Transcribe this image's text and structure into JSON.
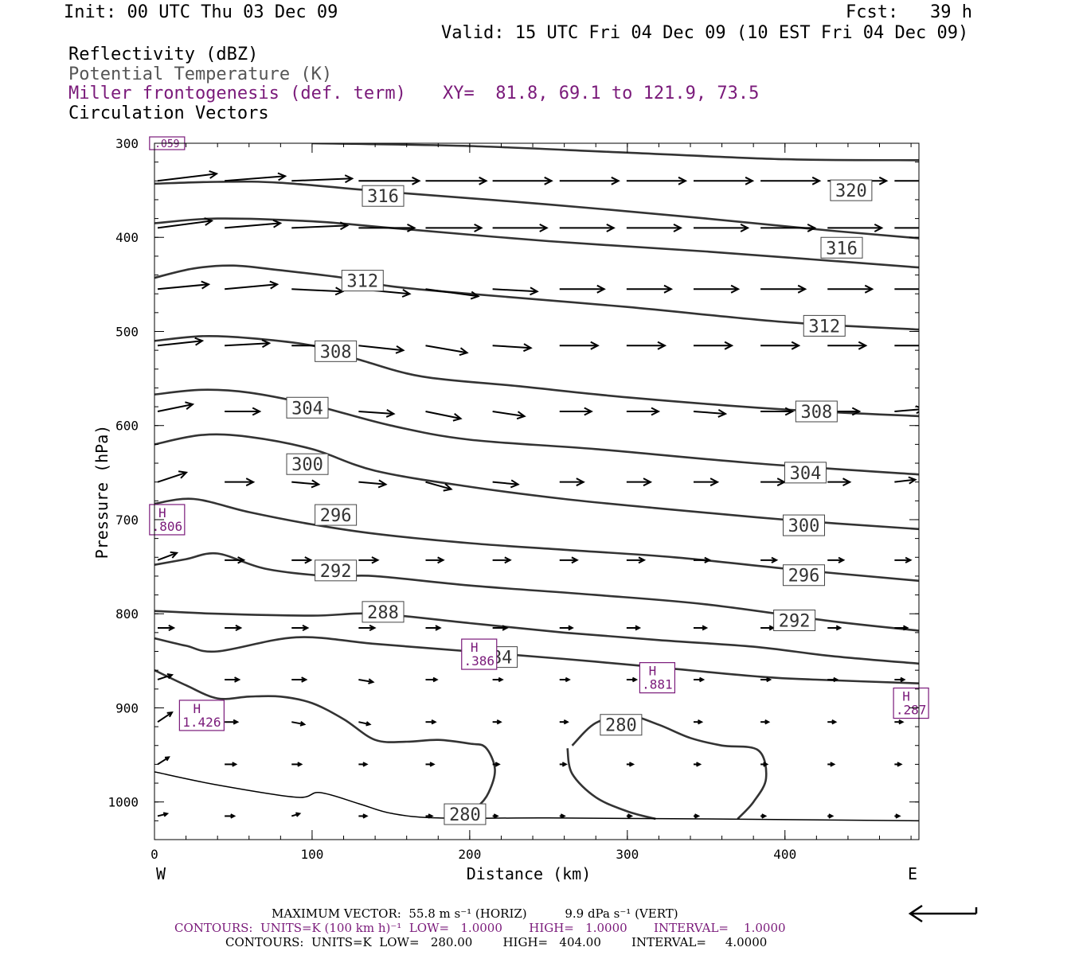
{
  "header": {
    "init": "Init: 00 UTC Thu 03 Dec 09",
    "fcst": "Fcst:   39 h",
    "valid": "Valid: 15 UTC Fri 04 Dec 09 (10 EST Fri 04 Dec 09)",
    "field1": "Reflectivity (dBZ)",
    "field2": "Potential Temperature (K)",
    "field3": "Miller frontogenesis (def. term)",
    "xy": "XY=  81.8, 69.1 to 121.9, 73.5",
    "field4": "Circulation Vectors"
  },
  "chart_data": {
    "type": "line",
    "xlabel": "Distance (km)",
    "ylabel": "Pressure (hPa)",
    "xlim": [
      0,
      485
    ],
    "ylim": [
      1040,
      300
    ],
    "x_ticks": [
      0,
      100,
      200,
      300,
      400
    ],
    "y_ticks": [
      300,
      400,
      500,
      600,
      700,
      800,
      900,
      1000
    ],
    "x_end_labels": {
      "left": "W",
      "right": "E"
    },
    "theta_series": [
      {
        "name": "312",
        "color": "#333",
        "points": [
          [
            0,
            443
          ],
          [
            25,
            433
          ],
          [
            50,
            430
          ],
          [
            80,
            435
          ],
          [
            120,
            443
          ],
          [
            150,
            452
          ],
          [
            200,
            460
          ],
          [
            300,
            474
          ],
          [
            400,
            490
          ],
          [
            485,
            498
          ]
        ]
      },
      {
        "name": "308",
        "color": "#333",
        "points": [
          [
            0,
            510
          ],
          [
            30,
            505
          ],
          [
            60,
            507
          ],
          [
            100,
            515
          ],
          [
            130,
            530
          ],
          [
            170,
            548
          ],
          [
            230,
            558
          ],
          [
            300,
            570
          ],
          [
            400,
            583
          ],
          [
            485,
            590
          ]
        ]
      },
      {
        "name": "304",
        "color": "#333",
        "points": [
          [
            0,
            567
          ],
          [
            30,
            562
          ],
          [
            60,
            565
          ],
          [
            100,
            578
          ],
          [
            150,
            600
          ],
          [
            200,
            615
          ],
          [
            280,
            625
          ],
          [
            380,
            640
          ],
          [
            485,
            652
          ]
        ]
      },
      {
        "name": "300",
        "color": "#333",
        "points": [
          [
            0,
            620
          ],
          [
            30,
            610
          ],
          [
            60,
            612
          ],
          [
            100,
            625
          ],
          [
            140,
            648
          ],
          [
            200,
            665
          ],
          [
            260,
            678
          ],
          [
            320,
            688
          ],
          [
            400,
            700
          ],
          [
            485,
            710
          ]
        ]
      },
      {
        "name": "296",
        "color": "#333",
        "points": [
          [
            0,
            683
          ],
          [
            25,
            678
          ],
          [
            60,
            692
          ],
          [
            100,
            705
          ],
          [
            140,
            715
          ],
          [
            200,
            725
          ],
          [
            260,
            732
          ],
          [
            330,
            740
          ],
          [
            400,
            752
          ],
          [
            485,
            765
          ]
        ]
      },
      {
        "name": "292",
        "color": "#333",
        "points": [
          [
            0,
            748
          ],
          [
            20,
            742
          ],
          [
            40,
            736
          ],
          [
            70,
            752
          ],
          [
            110,
            760
          ],
          [
            140,
            760
          ],
          [
            200,
            770
          ],
          [
            280,
            780
          ],
          [
            350,
            790
          ],
          [
            430,
            808
          ],
          [
            485,
            818
          ]
        ]
      },
      {
        "name": "288",
        "color": "#333",
        "points": [
          [
            0,
            797
          ],
          [
            40,
            800
          ],
          [
            100,
            802
          ],
          [
            140,
            800
          ],
          [
            200,
            810
          ],
          [
            260,
            820
          ],
          [
            320,
            828
          ],
          [
            380,
            835
          ],
          [
            430,
            845
          ],
          [
            485,
            853
          ]
        ]
      },
      {
        "name": "284",
        "color": "#333",
        "points": [
          [
            0,
            826
          ],
          [
            20,
            834
          ],
          [
            40,
            840
          ],
          [
            90,
            825
          ],
          [
            140,
            832
          ],
          [
            200,
            840
          ],
          [
            260,
            848
          ],
          [
            320,
            857
          ],
          [
            385,
            867
          ],
          [
            420,
            870
          ],
          [
            485,
            874
          ]
        ]
      },
      {
        "name": "280a",
        "color": "#333",
        "points": [
          [
            0,
            860
          ],
          [
            20,
            876
          ],
          [
            40,
            890
          ],
          [
            60,
            888
          ],
          [
            80,
            888
          ],
          [
            100,
            895
          ],
          [
            120,
            912
          ],
          [
            140,
            934
          ],
          [
            160,
            936
          ],
          [
            180,
            934
          ],
          [
            200,
            938
          ],
          [
            210,
            942
          ],
          [
            216,
            965
          ],
          [
            212,
            990
          ],
          [
            205,
            1005
          ],
          [
            195,
            1018
          ]
        ]
      },
      {
        "name": "280b",
        "color": "#333",
        "points": [
          [
            262,
            943
          ],
          [
            265,
            970
          ],
          [
            280,
            995
          ],
          [
            300,
            1010
          ],
          [
            318,
            1018
          ]
        ]
      },
      {
        "name": "280c",
        "color": "#333",
        "points": [
          [
            265,
            940
          ],
          [
            280,
            916
          ],
          [
            300,
            908
          ],
          [
            320,
            918
          ],
          [
            340,
            932
          ],
          [
            360,
            940
          ],
          [
            383,
            945
          ],
          [
            388,
            975
          ],
          [
            380,
            1000
          ],
          [
            370,
            1018
          ]
        ]
      },
      {
        "name": "surface",
        "color": "#000",
        "points": [
          [
            0,
            968
          ],
          [
            40,
            982
          ],
          [
            90,
            995
          ],
          [
            105,
            990
          ],
          [
            130,
            1002
          ],
          [
            150,
            1012
          ],
          [
            180,
            1017
          ],
          [
            250,
            1017
          ],
          [
            350,
            1018
          ],
          [
            485,
            1020
          ]
        ]
      }
    ],
    "boxed_labels": [
      {
        "text": "316",
        "x": 145,
        "p": 356
      },
      {
        "text": "320",
        "x": 442,
        "p": 350
      },
      {
        "text": "316",
        "x": 436,
        "p": 411
      },
      {
        "text": "312",
        "x": 132,
        "p": 446
      },
      {
        "text": "312",
        "x": 425,
        "p": 494
      },
      {
        "text": "308",
        "x": 115,
        "p": 521
      },
      {
        "text": "304",
        "x": 97,
        "p": 581
      },
      {
        "text": "308",
        "x": 420,
        "p": 585
      },
      {
        "text": "300",
        "x": 97,
        "p": 641
      },
      {
        "text": "304",
        "x": 413,
        "p": 650
      },
      {
        "text": "296",
        "x": 115,
        "p": 695
      },
      {
        "text": "300",
        "x": 412,
        "p": 706
      },
      {
        "text": "292",
        "x": 115,
        "p": 754
      },
      {
        "text": "296",
        "x": 412,
        "p": 759
      },
      {
        "text": "288",
        "x": 145,
        "p": 798
      },
      {
        "text": "292",
        "x": 406,
        "p": 807
      },
      {
        "text": "284",
        "x": 217,
        "p": 846
      },
      {
        "text": "280",
        "x": 296,
        "p": 918
      },
      {
        "text": "280",
        "x": 197,
        "p": 1013
      }
    ],
    "frontogenesis_highs": [
      {
        "text": "H",
        "value": ".806",
        "x": 8,
        "p": 700
      },
      {
        "text": "H",
        "value": "1.426",
        "x": 30,
        "p": 908
      },
      {
        "text": "H",
        "value": ".386",
        "x": 206,
        "p": 843
      },
      {
        "text": "H",
        "value": ".881",
        "x": 319,
        "p": 868
      },
      {
        "text": "H",
        "value": ".287",
        "x": 480,
        "p": 895
      },
      {
        "text": "",
        "value": ".059",
        "x": 8,
        "p": 300
      }
    ],
    "vectors": {
      "x_positions": [
        0,
        42.5,
        85,
        127.5,
        170,
        212.5,
        255,
        297.5,
        340,
        382.5,
        425,
        467.5
      ],
      "rows": [
        {
          "p": 340,
          "u": [
            37,
            38,
            38,
            38,
            38,
            37,
            37,
            37,
            37,
            37,
            37,
            20
          ]
        },
        {
          "p": 390,
          "u": [
            34,
            35,
            35,
            35,
            35,
            34,
            34,
            34,
            34,
            34,
            34,
            20
          ]
        },
        {
          "p": 455,
          "u": [
            32,
            33,
            32,
            32,
            33,
            28,
            28,
            28,
            28,
            28,
            28,
            20
          ]
        },
        {
          "p": 515,
          "u": [
            28,
            28,
            28,
            28,
            26,
            24,
            24,
            24,
            24,
            24,
            24,
            20
          ]
        },
        {
          "p": 585,
          "u": [
            22,
            22,
            22,
            22,
            22,
            20,
            20,
            20,
            20,
            20,
            20,
            18
          ]
        },
        {
          "p": 660,
          "u": [
            18,
            18,
            17,
            17,
            16,
            16,
            15,
            15,
            15,
            15,
            14,
            13
          ]
        },
        {
          "p": 743,
          "u": [
            12,
            12,
            12,
            12,
            11,
            11,
            11,
            11,
            10,
            10,
            10,
            10
          ]
        },
        {
          "p": 815,
          "u": [
            10,
            10,
            10,
            10,
            9,
            9,
            8,
            8,
            8,
            8,
            8,
            8
          ]
        },
        {
          "p": 870,
          "u": [
            9,
            9,
            9,
            9,
            7,
            6,
            6,
            6,
            6,
            6,
            6,
            6
          ]
        },
        {
          "p": 915,
          "u": [
            9,
            8,
            8,
            7,
            6,
            5,
            5,
            5,
            5,
            5,
            5,
            5
          ]
        },
        {
          "p": 960,
          "u": [
            7,
            7,
            6,
            5,
            5,
            4,
            4,
            4,
            4,
            4,
            4,
            4
          ]
        },
        {
          "p": 1015,
          "u": [
            6,
            6,
            5,
            5,
            4,
            3,
            3,
            3,
            3,
            3,
            3,
            3
          ]
        }
      ],
      "w": [
        [
          3,
          2,
          1,
          0,
          0,
          0,
          0,
          0,
          0,
          0,
          0,
          0
        ],
        [
          3,
          2,
          1,
          0,
          0,
          0,
          0,
          0,
          0,
          0,
          0,
          0
        ],
        [
          2,
          2,
          -1,
          -2,
          -3,
          -1,
          0,
          0,
          0,
          0,
          0,
          0
        ],
        [
          2,
          1,
          0,
          -2,
          -3,
          -1,
          0,
          0,
          0,
          0,
          0,
          0
        ],
        [
          3,
          0,
          0,
          -1,
          -3,
          -2,
          0,
          0,
          -1,
          0,
          0,
          1
        ],
        [
          4,
          0,
          -1,
          -1,
          -3,
          -1,
          0,
          0,
          0,
          0,
          0,
          1
        ],
        [
          3,
          0,
          0,
          0,
          0,
          0,
          0,
          0,
          0,
          0,
          0,
          0
        ],
        [
          0,
          0,
          0,
          0,
          0,
          0,
          0,
          0,
          0,
          0,
          0,
          0
        ],
        [
          2,
          0,
          0,
          -1,
          0,
          0,
          0,
          0,
          0,
          0,
          0,
          0
        ],
        [
          4,
          0,
          -1,
          -1,
          0,
          0,
          0,
          0,
          0,
          0,
          0,
          0
        ],
        [
          3,
          0,
          0,
          0,
          0,
          0,
          0,
          0,
          0,
          0,
          0,
          0
        ],
        [
          1,
          0,
          1,
          0,
          0,
          0,
          0,
          0,
          0,
          0,
          0,
          0
        ]
      ]
    }
  },
  "footer": {
    "max_vector": "MAXIMUM VECTOR:  55.8 m s⁻¹ (HORIZ)          9.9 dPa s⁻¹ (VERT)",
    "contours1": "CONTOURS:  UNITS=K (100 km h)⁻¹  LOW=   1.0000       HIGH=   1.0000       INTERVAL=    1.0000",
    "contours2": "CONTOURS:  UNITS=K  LOW=   280.00        HIGH=   404.00        INTERVAL=     4.0000"
  }
}
